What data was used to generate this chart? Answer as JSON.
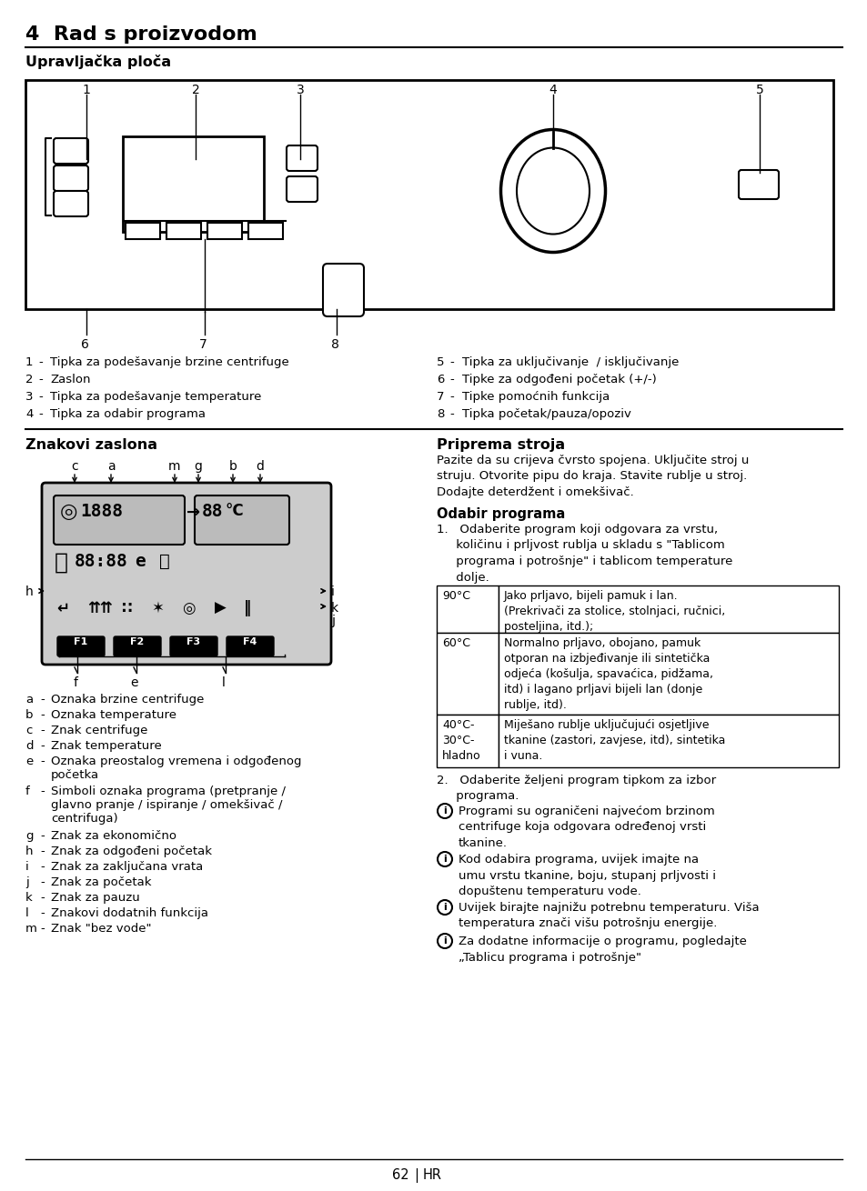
{
  "title": "4  Rad s proizvodom",
  "subtitle": "Upravljačka ploča",
  "bg_color": "#ffffff",
  "section2_title": "Znakovi zaslona",
  "section3_title": "Priprema stroja",
  "section3_body": "Pazite da su crijeva čvrsto spojena. Uključite stroj u\nstruju. Otvorite pipu do kraja. Stavite rublje u stroj.\nDodajte deterdžent i omekšivač.",
  "odabir_title": "Odabir programa",
  "odabir_1": "1.   Odaberite program koji odgovara za vrstu,\n     količinu i prljvost rublja u skladu s \"Tablicom\n     programa i potrošnje\" i tablicom temperature\n     dolje.",
  "odabir_2": "2.   Odaberite željeni program tipkom za izbor\n     programa.",
  "info1": "Programi su ograničeni najvećom brzinom\ncentrifuge koja odgovara određenoj vrsti\ntkanine.",
  "info2": "Kod odabira programa, uvijek imajte na\numu vrstu tkanine, boju, stupanj prljvosti i\ndopuštenu temperaturu vode.",
  "info3": "Uvijek birajte najnižu potrebnu temperaturu. Viša\ntemperatura znači višu potrošnju energije.",
  "info4": "Za dodatne informacije o programu, pogledajte\n„Tablicu programa i potrošnje\"",
  "labels_left": [
    [
      "1",
      "Tipka za podešavanje brzine centrifuge"
    ],
    [
      "2",
      "Zaslon"
    ],
    [
      "3",
      "Tipka za podešavanje temperature"
    ],
    [
      "4",
      "Tipka za odabir programa"
    ]
  ],
  "labels_right": [
    [
      "5",
      "Tipka za uključivanje  / isključivanje"
    ],
    [
      "6",
      "Tipke za odgođeni početak (+/-)"
    ],
    [
      "7",
      "Tipke pomoćnih funkcija"
    ],
    [
      "8",
      "Tipka početak/pauza/opoziv"
    ]
  ],
  "legend_items": [
    [
      "a",
      "Oznaka brzine centrifuge"
    ],
    [
      "b",
      "Oznaka temperature"
    ],
    [
      "c",
      "Znak centrifuge"
    ],
    [
      "d",
      "Znak temperature"
    ],
    [
      "e",
      "Oznaka preostalog vremena i odgođenog\npočetka"
    ],
    [
      "f",
      "Simboli oznaka programa (pretpranje /\nglavno pranje / ispiranje / omekšivač /\ncentrifuga)"
    ],
    [
      "g",
      "Znak za ekonomično"
    ],
    [
      "h",
      "Znak za odgođeni početak"
    ],
    [
      "i",
      "Znak za zaključana vrata"
    ],
    [
      "j",
      "Znak za početak"
    ],
    [
      "k",
      "Znak za pauzu"
    ],
    [
      "l",
      "Znakovi dodatnih funkcija"
    ],
    [
      "m",
      "Znak \"bez vode\""
    ]
  ],
  "table_rows": [
    [
      "90°C",
      "Jako prljavo, bijeli pamuk i lan.\n(Prekrivači za stolice, stolnjaci, ručnici,\nposteljina, itd.);"
    ],
    [
      "60°C",
      "Normalno prljavo, obojano, pamuk\notporan na izbjeđivanje ili sintetička\nodjeća (košulja, spavaćica, pidžama,\nitd) i lagano prljavi bijeli lan (donje\nrublje, itd)."
    ],
    [
      "40°C-\n30°C-\nhladno",
      "Miješano rublje uključujući osjetljive\ntkanine (zastori, zavjese, itd), sintetika\ni vuna."
    ]
  ],
  "page_num": "62",
  "page_lang": "HR"
}
